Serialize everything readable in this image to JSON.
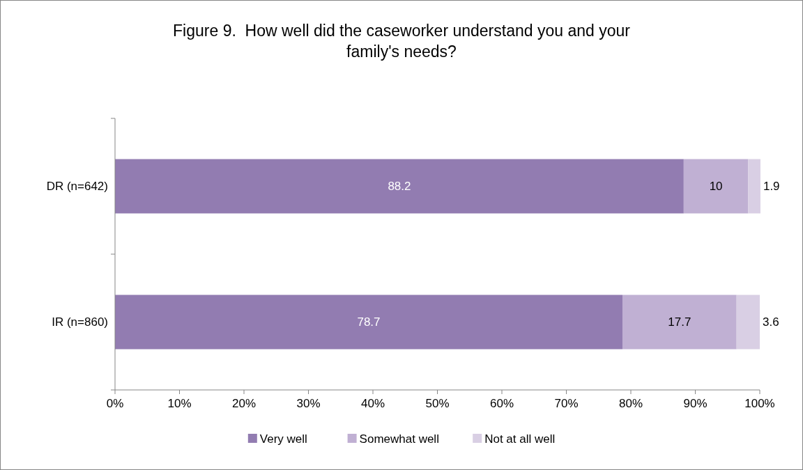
{
  "chart_data": {
    "type": "bar",
    "orientation": "horizontal",
    "stacked": true,
    "title": "Figure 9.  How well did the caseworker understand you and your family's needs?",
    "categories": [
      "DR (n=642)",
      "IR (n=860)"
    ],
    "series": [
      {
        "name": "Very well",
        "color": "#927cb1",
        "values": [
          88.2,
          78.7
        ]
      },
      {
        "name": "Somewhat well",
        "color": "#c0b0d3",
        "values": [
          10,
          17.7
        ]
      },
      {
        "name": "Not at all well",
        "color": "#d9cfe4",
        "values": [
          1.9,
          3.6
        ]
      }
    ],
    "xlim": [
      0,
      100
    ],
    "xticks": [
      {
        "value": 0,
        "label": "0%"
      },
      {
        "value": 10,
        "label": "10%"
      },
      {
        "value": 20,
        "label": "20%"
      },
      {
        "value": 30,
        "label": "30%"
      },
      {
        "value": 40,
        "label": "40%"
      },
      {
        "value": 50,
        "label": "50%"
      },
      {
        "value": 60,
        "label": "60%"
      },
      {
        "value": 70,
        "label": "70%"
      },
      {
        "value": 80,
        "label": "80%"
      },
      {
        "value": 90,
        "label": "90%"
      },
      {
        "value": 100,
        "label": "100%"
      }
    ],
    "data_labels": true,
    "legend": "bottom",
    "grid": false
  }
}
